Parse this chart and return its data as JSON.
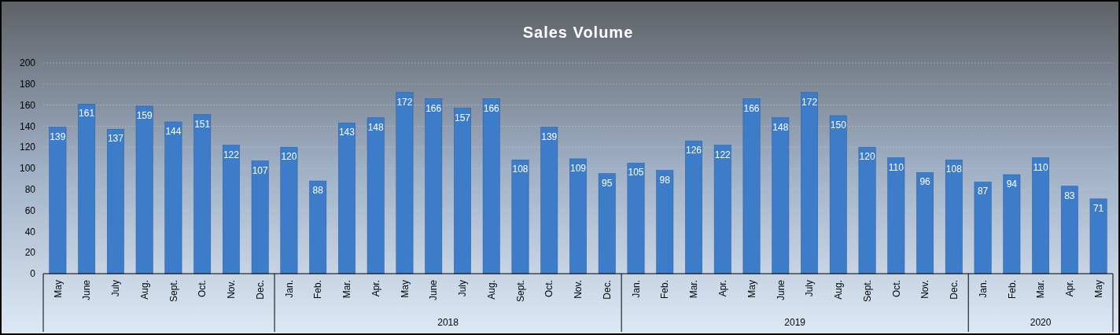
{
  "chart_data": {
    "type": "bar",
    "title": "Sales Volume",
    "categories": [
      "May",
      "June",
      "July",
      "Aug.",
      "Sept.",
      "Oct.",
      "Nov.",
      "Dec.",
      "Jan.",
      "Feb.",
      "Mar.",
      "Apr.",
      "May",
      "June",
      "July",
      "Aug.",
      "Sept.",
      "Oct.",
      "Nov.",
      "Dec.",
      "Jan.",
      "Feb.",
      "Mar.",
      "Apr.",
      "May",
      "June",
      "July",
      "Aug.",
      "Sept.",
      "Oct.",
      "Nov.",
      "Dec.",
      "Jan.",
      "Feb.",
      "Mar.",
      "Apr.",
      "May"
    ],
    "values": [
      139,
      161,
      137,
      159,
      144,
      151,
      122,
      107,
      120,
      88,
      143,
      148,
      172,
      166,
      157,
      166,
      108,
      139,
      109,
      95,
      105,
      98,
      126,
      122,
      166,
      148,
      172,
      150,
      120,
      110,
      96,
      108,
      87,
      94,
      110,
      83,
      71
    ],
    "color": "#3d7cc9",
    "ylim": [
      0,
      200
    ],
    "yticks": [
      0,
      20,
      40,
      60,
      80,
      100,
      120,
      140,
      160,
      180,
      200
    ],
    "grid": "y",
    "data_labels": true,
    "annotations": [
      "2018",
      "2019",
      "2020"
    ]
  }
}
